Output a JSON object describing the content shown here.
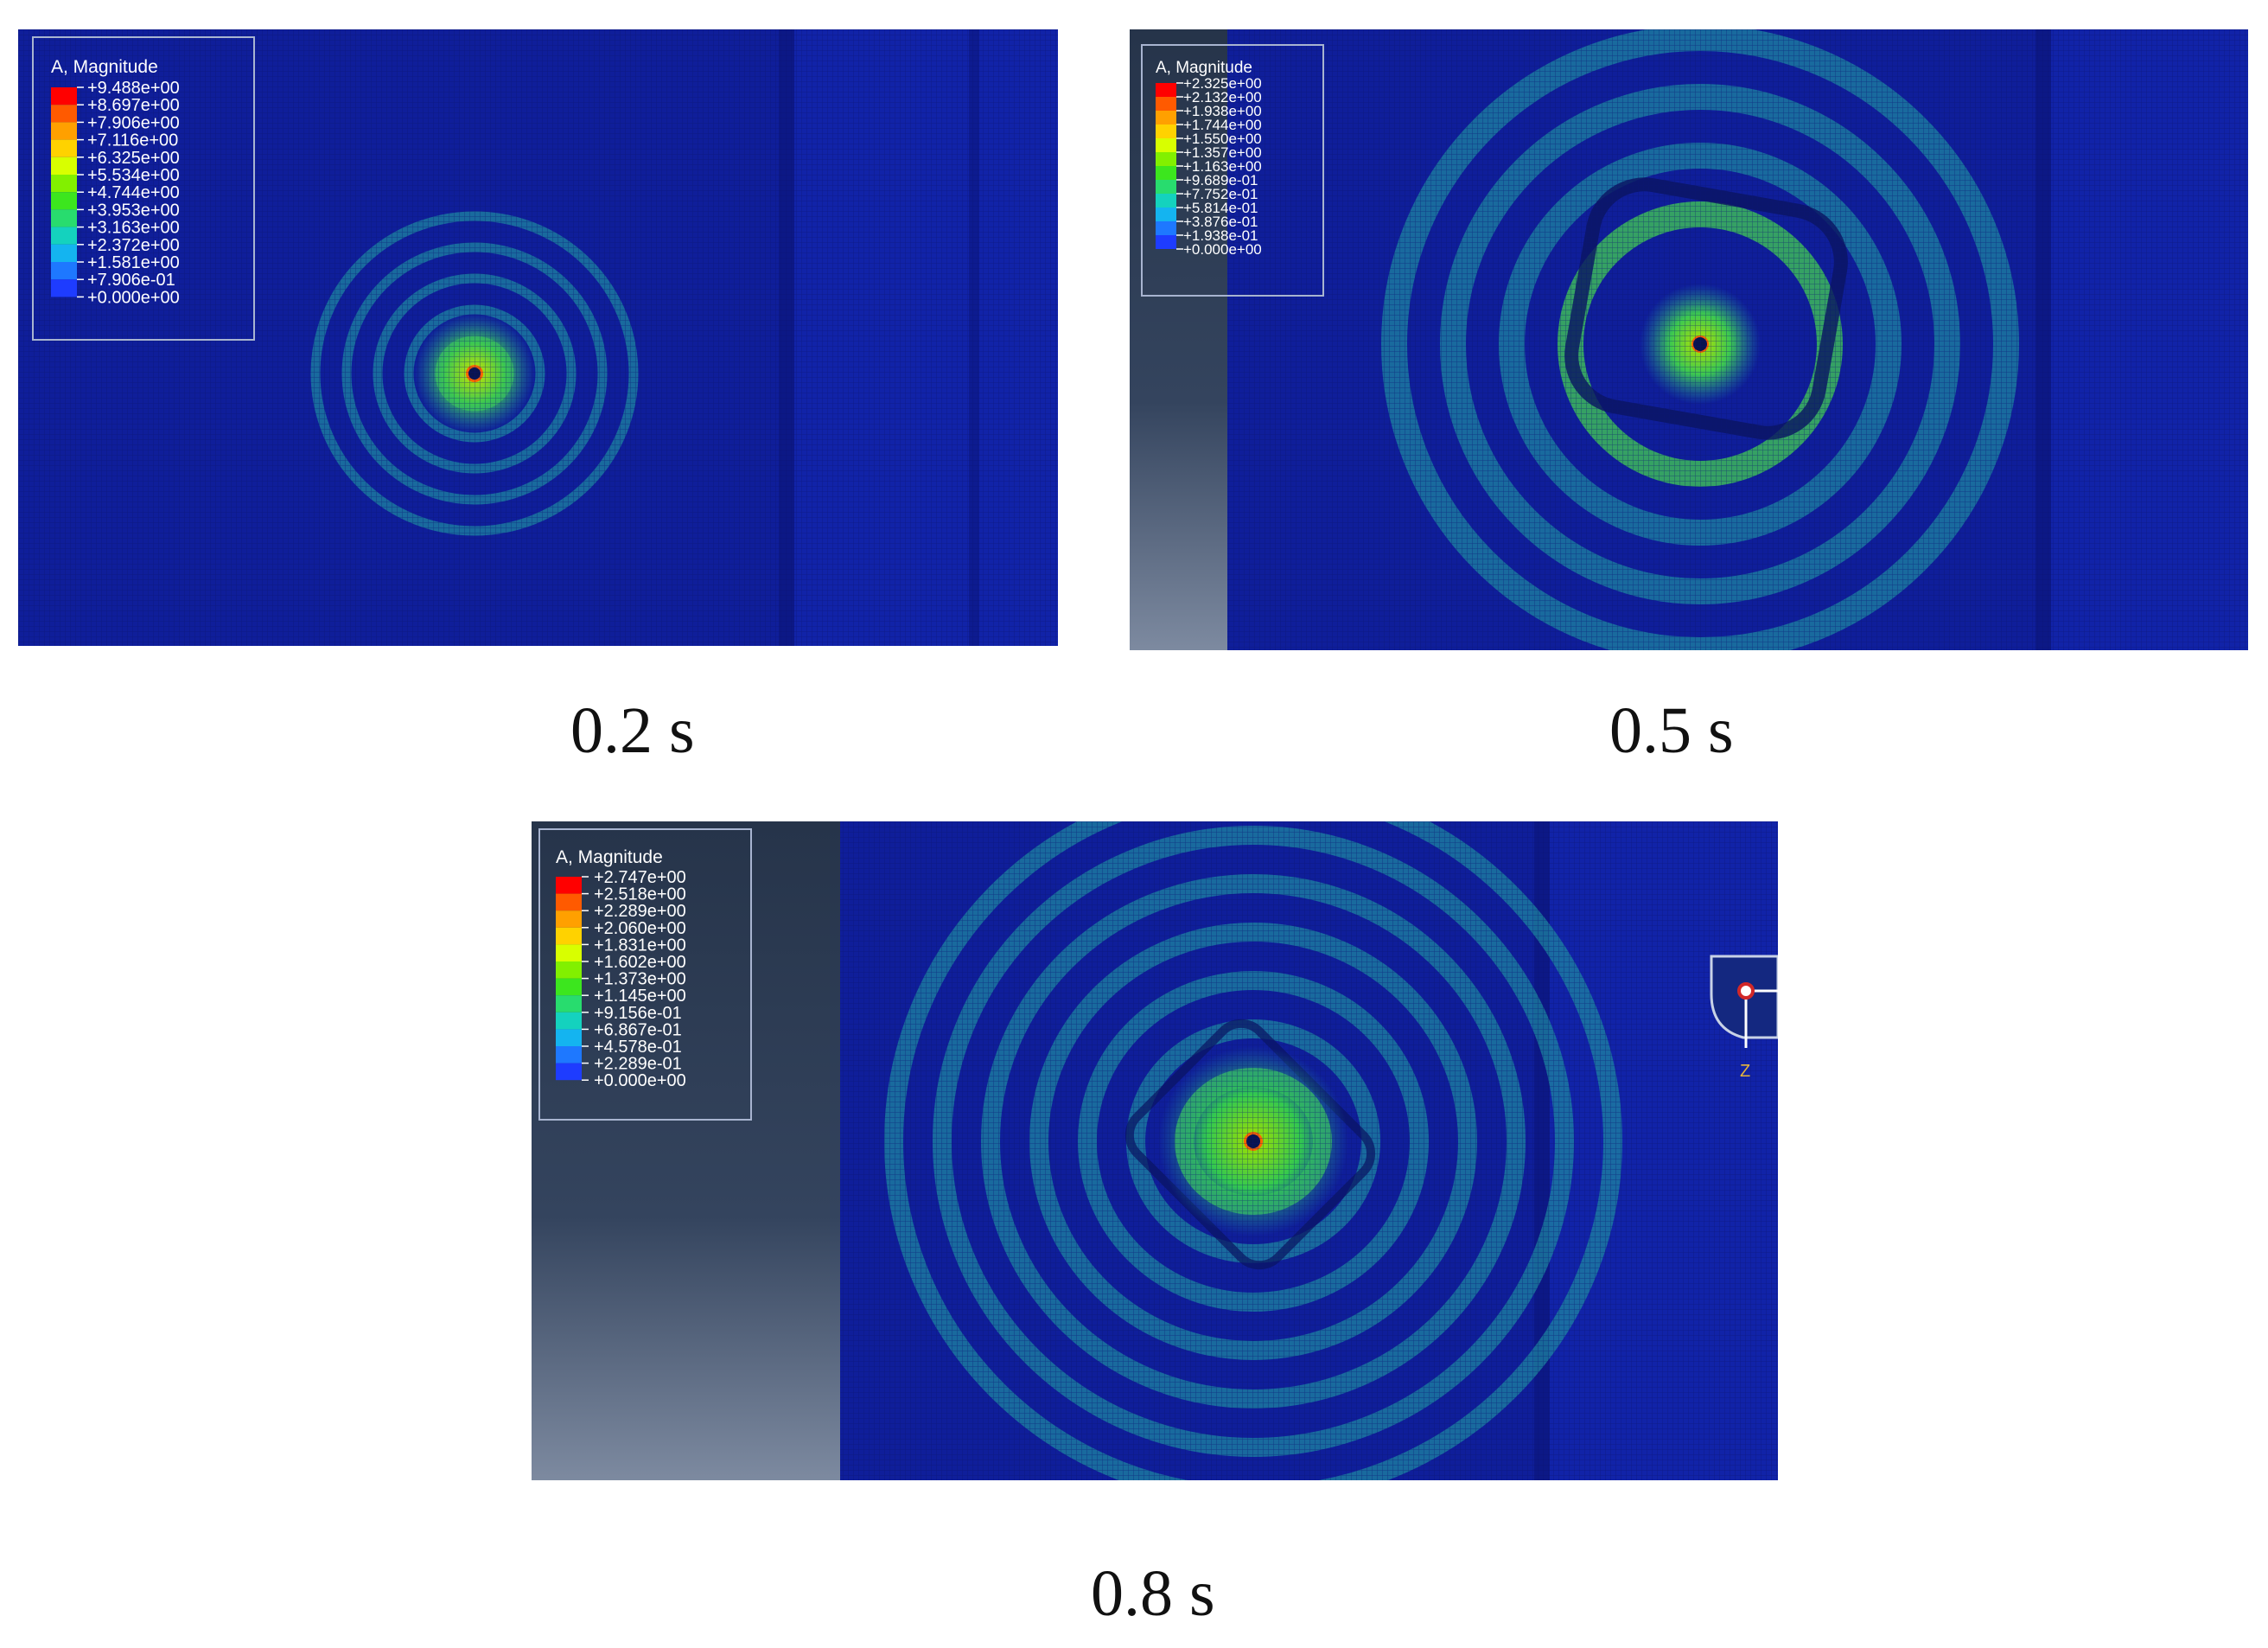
{
  "panels": [
    {
      "id": "a",
      "caption": "0.2 s",
      "legend": {
        "title": "A, Magnitude",
        "values": [
          "+9.488e+00",
          "+8.697e+00",
          "+7.906e+00",
          "+7.116e+00",
          "+6.325e+00",
          "+5.534e+00",
          "+4.744e+00",
          "+3.953e+00",
          "+3.163e+00",
          "+2.372e+00",
          "+1.581e+00",
          "+7.906e-01",
          "+0.000e+00"
        ]
      },
      "ring_count": 5,
      "has_triad": false
    },
    {
      "id": "b",
      "caption": "0.5 s",
      "legend": {
        "title": "A, Magnitude",
        "values": [
          "+2.325e+00",
          "+2.132e+00",
          "+1.938e+00",
          "+1.744e+00",
          "+1.550e+00",
          "+1.357e+00",
          "+1.163e+00",
          "+9.689e-01",
          "+7.752e-01",
          "+5.814e-01",
          "+3.876e-01",
          "+1.938e-01",
          "+0.000e+00"
        ]
      },
      "ring_count": 4,
      "has_triad": false
    },
    {
      "id": "c",
      "caption": "0.8 s",
      "legend": {
        "title": "A, Magnitude",
        "values": [
          "+2.747e+00",
          "+2.518e+00",
          "+2.289e+00",
          "+2.060e+00",
          "+1.831e+00",
          "+1.602e+00",
          "+1.373e+00",
          "+1.145e+00",
          "+9.156e-01",
          "+6.867e-01",
          "+4.578e-01",
          "+2.289e-01",
          "+0.000e+00"
        ]
      },
      "ring_count": 7,
      "has_triad": true,
      "triad_label": "Z"
    }
  ],
  "colors": {
    "legend_scale": [
      "#ff0000",
      "#ff5a00",
      "#ffa000",
      "#ffd200",
      "#d8ff00",
      "#82f000",
      "#3ce61e",
      "#28dc6e",
      "#14d2be",
      "#14b4f0",
      "#1e78ff",
      "#1e3cff",
      "#0000ff"
    ],
    "field_background": "#0f1e9a",
    "ring": "#1e8aa0",
    "ring_hot": "#3cb85a",
    "viewport_gray": "#2b3a52"
  }
}
